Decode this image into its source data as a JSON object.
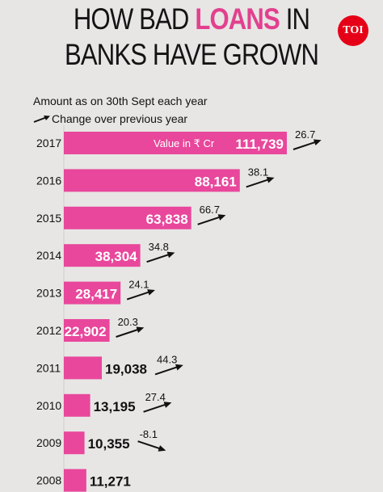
{
  "title": {
    "line1_pre": "HOW BAD ",
    "line1_highlight": "LOANS",
    "line1_post": " IN",
    "line2": "BANKS HAVE GROWN"
  },
  "logo_text": "TOI",
  "notes": {
    "amount": "Amount as on 30th Sept each year",
    "change": "Change over previous year"
  },
  "colors": {
    "bar": "#e8479c",
    "background": "#e7e6e4",
    "highlight": "#e2408f",
    "logo": "#e60017"
  },
  "chart_data": {
    "type": "bar",
    "orientation": "horizontal",
    "inner_label": "Value in ₹ Cr",
    "categories": [
      "2017",
      "2016",
      "2015",
      "2014",
      "2013",
      "2012",
      "2011",
      "2010",
      "2009",
      "2008"
    ],
    "series": [
      {
        "values": [
          111739,
          88161,
          63838,
          38304,
          28417,
          22902,
          19038,
          13195,
          10355,
          11271
        ]
      }
    ],
    "value_labels": [
      "111,739",
      "88,161",
      "63,838",
      "38,304",
      "28,417",
      "22,902",
      "19,038",
      "13,195",
      "10,355",
      "11,271"
    ],
    "change": [
      26.7,
      38.1,
      66.7,
      34.8,
      24.1,
      20.3,
      44.3,
      27.4,
      -8.1,
      null
    ],
    "change_labels": [
      "26.7",
      "38.1",
      "66.7",
      "34.8",
      "24.1",
      "20.3",
      "44.3",
      "27.4",
      "-8.1",
      ""
    ],
    "xlim": [
      0,
      111739
    ]
  }
}
